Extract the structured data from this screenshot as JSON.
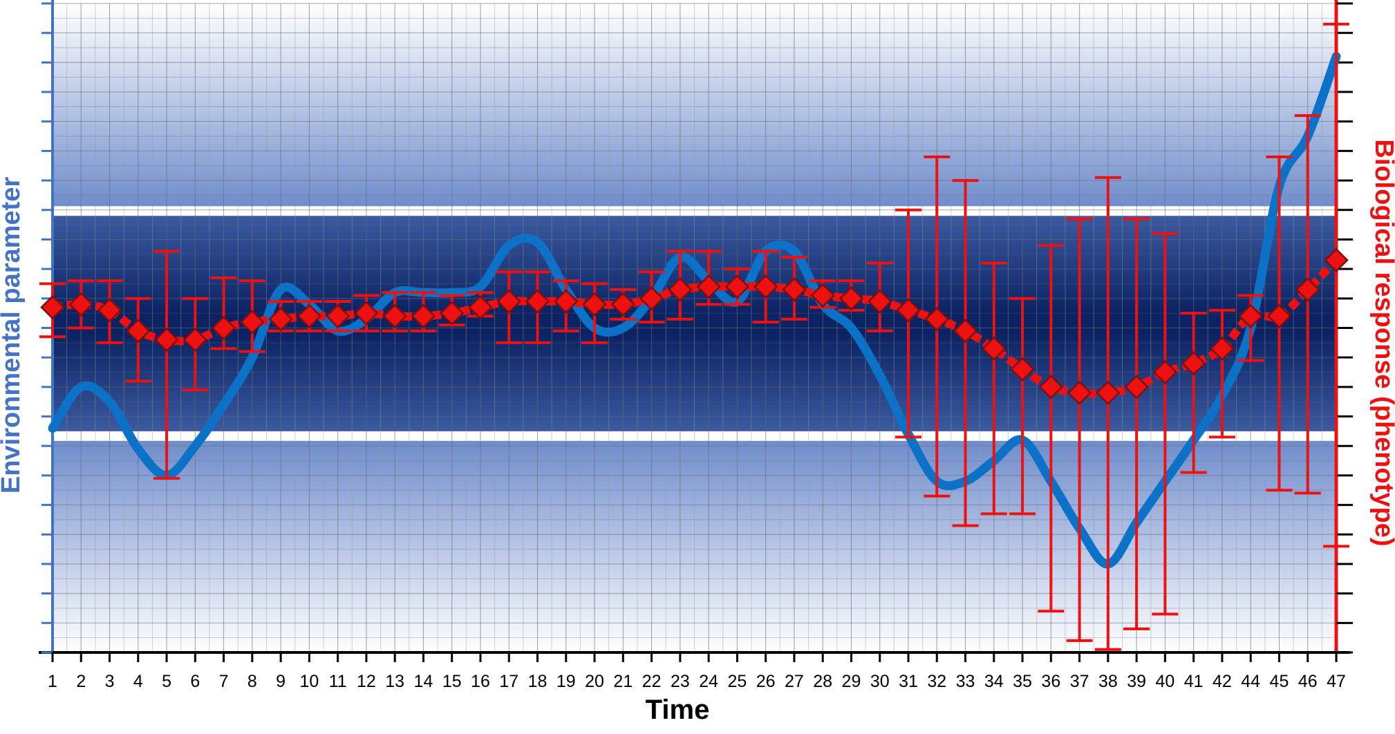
{
  "chart_data": {
    "type": "line",
    "xlabel": "Time",
    "ylabel_left": "Environmental parameter",
    "ylabel_right": "Biological response (phenotype)",
    "categories": [
      "1",
      "2",
      "3",
      "4",
      "5",
      "6",
      "7",
      "8",
      "9",
      "10",
      "11",
      "12",
      "13",
      "14",
      "15",
      "16",
      "17",
      "18",
      "19",
      "20",
      "21",
      "22",
      "23",
      "24",
      "25",
      "26",
      "27",
      "28",
      "29",
      "30",
      "31",
      "32",
      "33",
      "34",
      "35",
      "36",
      "37",
      "38",
      "39",
      "40",
      "41",
      "42",
      "44",
      "45",
      "46",
      "47"
    ],
    "ylim": [
      0,
      22
    ],
    "bands": {
      "optimal_range": [
        7.5,
        14.8
      ],
      "tolerance_range": [
        0,
        22
      ]
    },
    "series": [
      {
        "role": "environmental",
        "color": "#0b72c8",
        "values": [
          7.6,
          9.0,
          8.5,
          6.9,
          6.0,
          7.0,
          8.4,
          10.0,
          12.3,
          11.8,
          10.9,
          11.3,
          12.2,
          12.2,
          12.2,
          12.4,
          13.8,
          13.9,
          12.3,
          11.0,
          11.0,
          12.0,
          13.4,
          12.6,
          11.9,
          13.6,
          13.6,
          11.8,
          11.0,
          9.4,
          7.4,
          5.8,
          5.8,
          6.5,
          7.2,
          5.8,
          4.2,
          3.0,
          4.4,
          5.8,
          7.2,
          8.7,
          11.0,
          15.8,
          17.5,
          20.2
        ]
      },
      {
        "role": "biological",
        "color": "#ee1111",
        "marker": "diamond",
        "values": [
          11.7,
          11.8,
          11.6,
          10.9,
          10.6,
          10.6,
          11.0,
          11.2,
          11.3,
          11.4,
          11.4,
          11.5,
          11.4,
          11.4,
          11.5,
          11.7,
          11.9,
          11.9,
          11.9,
          11.8,
          11.8,
          12.0,
          12.3,
          12.4,
          12.4,
          12.4,
          12.3,
          12.1,
          12.0,
          11.9,
          11.6,
          11.3,
          10.9,
          10.3,
          9.6,
          9.0,
          8.8,
          8.8,
          9.0,
          9.5,
          9.8,
          10.3,
          11.4,
          11.4,
          12.3,
          13.3
        ]
      }
    ],
    "error_bars": {
      "low": [
        10.7,
        11.0,
        10.5,
        9.2,
        5.9,
        8.9,
        10.3,
        10.2,
        10.9,
        10.9,
        10.9,
        10.9,
        10.9,
        10.9,
        11.1,
        11.4,
        10.5,
        10.5,
        10.9,
        10.5,
        11.3,
        11.2,
        11.3,
        11.8,
        11.8,
        11.2,
        11.3,
        11.7,
        11.6,
        10.9,
        7.3,
        5.3,
        4.3,
        4.7,
        4.7,
        1.4,
        0.4,
        0.1,
        0.8,
        1.3,
        6.1,
        7.3,
        9.9,
        5.5,
        5.4,
        3.6
      ],
      "high": [
        12.5,
        12.6,
        12.6,
        12.0,
        13.6,
        12.0,
        12.7,
        12.6,
        11.9,
        11.9,
        11.9,
        12.1,
        12.2,
        12.2,
        12.1,
        12.2,
        12.9,
        12.9,
        12.6,
        12.5,
        12.3,
        12.9,
        13.6,
        13.6,
        13.0,
        13.6,
        13.4,
        12.6,
        12.6,
        13.2,
        15.0,
        16.8,
        16.0,
        13.2,
        12.0,
        13.8,
        14.7,
        16.1,
        14.7,
        14.2,
        11.5,
        11.6,
        12.1,
        16.8,
        18.2,
        21.3
      ]
    },
    "legend": "none",
    "grid": true
  }
}
